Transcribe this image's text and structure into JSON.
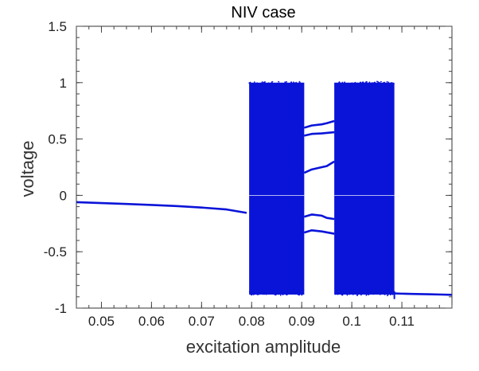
{
  "chart_data": {
    "type": "scatter",
    "title": "NIV case",
    "xlabel": "excitation amplitude",
    "ylabel": "voltage",
    "xlim": [
      0.045,
      0.12
    ],
    "ylim": [
      -1,
      1.5
    ],
    "xticks": [
      0.05,
      0.06,
      0.07,
      0.08,
      0.09,
      0.1,
      0.11
    ],
    "xtick_labels": [
      "0.05",
      "0.06",
      "0.07",
      "0.08",
      "0.09",
      "0.1",
      "0.11"
    ],
    "yticks": [
      -1,
      -0.5,
      0,
      0.5,
      1,
      1.5
    ],
    "ytick_labels": [
      "-1",
      "-0.5",
      "0",
      "0.5",
      "1",
      "1.5"
    ],
    "grid": false,
    "color": "#0a14d8",
    "chaotic_bands": [
      {
        "x_start": 0.0795,
        "x_end": 0.0905,
        "y_min": -0.88,
        "y_max": 1.0
      },
      {
        "x_start": 0.0965,
        "x_end": 0.1085,
        "y_min": -0.88,
        "y_max": 1.0
      }
    ],
    "series": [
      {
        "x": [
          0.045,
          0.05,
          0.055,
          0.06,
          0.065,
          0.07,
          0.075,
          0.079
        ],
        "y": [
          -0.06,
          -0.068,
          -0.076,
          -0.085,
          -0.095,
          -0.108,
          -0.125,
          -0.155
        ]
      },
      {
        "x": [
          0.0905,
          0.092,
          0.094,
          0.095,
          0.0965
        ],
        "y": [
          0.6,
          0.62,
          0.63,
          0.64,
          0.66
        ]
      },
      {
        "x": [
          0.0905,
          0.092,
          0.094,
          0.0965
        ],
        "y": [
          0.53,
          0.545,
          0.55,
          0.56
        ]
      },
      {
        "x": [
          0.0905,
          0.092,
          0.094,
          0.095,
          0.0965
        ],
        "y": [
          0.2,
          0.23,
          0.25,
          0.26,
          0.3
        ]
      },
      {
        "x": [
          0.0905,
          0.092,
          0.094,
          0.095,
          0.0965
        ],
        "y": [
          -0.19,
          -0.17,
          -0.18,
          -0.2,
          -0.21
        ]
      },
      {
        "x": [
          0.0905,
          0.092,
          0.094,
          0.0965
        ],
        "y": [
          -0.33,
          -0.31,
          -0.32,
          -0.34
        ]
      },
      {
        "x": [
          0.1085,
          0.11,
          0.112,
          0.114,
          0.116,
          0.118,
          0.12
        ],
        "y": [
          -0.87,
          -0.872,
          -0.874,
          -0.876,
          -0.878,
          -0.88,
          -0.882
        ]
      }
    ]
  }
}
